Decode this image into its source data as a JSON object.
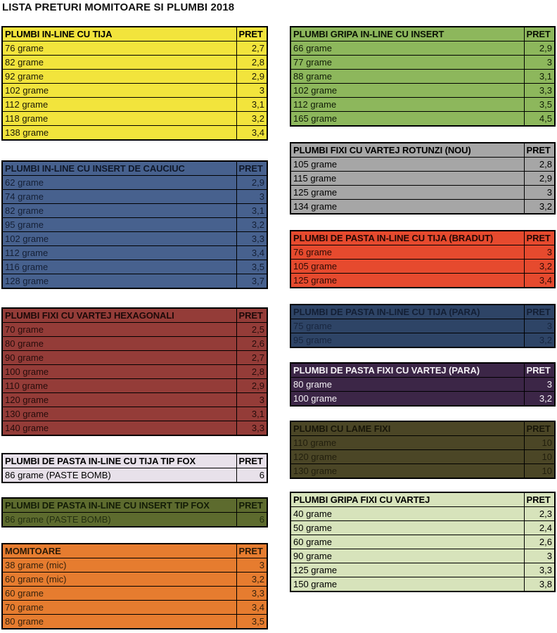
{
  "page_title": "LISTA PRETURI MOMITOARE SI PLUMBI 2018",
  "columns": {
    "left": [
      {
        "id": "plumbi-in-line-cu-tija",
        "title": "PLUMBI IN-LINE CU TIJA",
        "price_label": "PRET",
        "colors": {
          "bg": "#f2e43c",
          "text": "#1c1a06",
          "header_text": "#000000"
        },
        "rows": [
          {
            "item": "76 grame",
            "price": "2,7"
          },
          {
            "item": "82 grame",
            "price": "2,8"
          },
          {
            "item": "92 grame",
            "price": "2,9"
          },
          {
            "item": "102 grame",
            "price": "3"
          },
          {
            "item": "112 grame",
            "price": "3,1"
          },
          {
            "item": "118 grame",
            "price": "3,2"
          },
          {
            "item": "138 grame",
            "price": "3,4"
          }
        ]
      },
      {
        "id": "plumbi-in-line-cu-insert-de-cauciuc",
        "title": "PLUMBI IN-LINE CU INSERT DE CAUCIUC",
        "price_label": "PRET",
        "colors": {
          "bg": "#47618e",
          "text": "#141f35",
          "header_text": "#0f182a"
        },
        "rows": [
          {
            "item": "62 grame",
            "price": "2,9"
          },
          {
            "item": "74 grame",
            "price": "3"
          },
          {
            "item": "82 grame",
            "price": "3,1"
          },
          {
            "item": "95 grame",
            "price": "3,2"
          },
          {
            "item": "102 grame",
            "price": "3,3"
          },
          {
            "item": "112 grame",
            "price": "3,4"
          },
          {
            "item": "116 grame",
            "price": "3,5"
          },
          {
            "item": "128 grame",
            "price": "3,7"
          }
        ]
      },
      {
        "id": "plumbi-fixi-cu-vartej-hexagonali",
        "title": "PLUMBI FIXI CU VARTEJ HEXAGONALI",
        "price_label": "PRET",
        "colors": {
          "bg": "#943c38",
          "text": "#260c0b",
          "header_text": "#1d0908"
        },
        "rows": [
          {
            "item": "70 grame",
            "price": "2,5"
          },
          {
            "item": "80 grame",
            "price": "2,6"
          },
          {
            "item": "90 grame",
            "price": "2,7"
          },
          {
            "item": "100 grame",
            "price": "2,8"
          },
          {
            "item": "110 grame",
            "price": "2,9"
          },
          {
            "item": "120 grame",
            "price": "3"
          },
          {
            "item": "130 grame",
            "price": "3,1"
          },
          {
            "item": "140 grame",
            "price": "3,3"
          }
        ]
      },
      {
        "id": "plumbi-de-pasta-in-line-cu-tija-tip-fox",
        "title": "PLUMBI DE PASTA IN-LINE CU TIJA TIP FOX",
        "price_label": "PRET",
        "colors": {
          "bg": "#e8e1ea",
          "text": "#000000",
          "header_text": "#000000"
        },
        "rows": [
          {
            "item": "86 grame (PASTE BOMB)",
            "price": "6"
          }
        ]
      },
      {
        "id": "plumbi-de-pasta-in-line-cu-insert-tip-fox",
        "title": "PLUMBI DE PASTA IN-LINE CU INSERT TIP FOX",
        "price_label": "PRET",
        "colors": {
          "bg": "#5d6b2e",
          "text": "#232f10",
          "header_text": "#131c06"
        },
        "rows": [
          {
            "item": "86 grame (PASTE BOMB)",
            "price": "6"
          }
        ]
      },
      {
        "id": "momitoare",
        "title": "MOMITOARE",
        "price_label": "PRET",
        "colors": {
          "bg": "#e67c2f",
          "text": "#36220d",
          "header_text": "#2a1a08"
        },
        "rows": [
          {
            "item": "38 grame (mic)",
            "price": "3"
          },
          {
            "item": "60 grame (mic)",
            "price": "3,2"
          },
          {
            "item": "60 grame",
            "price": "3,3"
          },
          {
            "item": "70 grame",
            "price": "3,4"
          },
          {
            "item": "80 grame",
            "price": "3,5"
          }
        ]
      }
    ],
    "right": [
      {
        "id": "plumbi-gripa-in-line-cu-insert",
        "title": "PLUMBI GRIPA IN-LINE CU INSERT",
        "price_label": "PRET",
        "colors": {
          "bg": "#8db75c",
          "text": "#101c06",
          "header_text": "#0a1203"
        },
        "rows": [
          {
            "item": "66 grame",
            "price": "2,9"
          },
          {
            "item": "77 grame",
            "price": "3"
          },
          {
            "item": "88 grame",
            "price": "3,1"
          },
          {
            "item": "102 grame",
            "price": "3,3"
          },
          {
            "item": "112 grame",
            "price": "3,5"
          },
          {
            "item": "165 grame",
            "price": "4,5"
          }
        ]
      },
      {
        "id": "plumbi-fixi-cu-vartej-rotunzi-nou",
        "title": "PLUMBI FIXI CU VARTEJ ROTUNZI (NOU)",
        "price_label": "PRET",
        "colors": {
          "bg": "#a6a6a6",
          "text": "#000000",
          "header_text": "#000000"
        },
        "rows": [
          {
            "item": "105 grame",
            "price": "2,8"
          },
          {
            "item": "115 grame",
            "price": "2,9"
          },
          {
            "item": "125 grame",
            "price": "3"
          },
          {
            "item": "134 grame",
            "price": "3,2"
          }
        ]
      },
      {
        "id": "plumbi-de-pasta-in-line-cu-tija-bradut",
        "title": "PLUMBI DE PASTA IN-LINE CU TIJA (BRADUT)",
        "price_label": "PRET",
        "colors": {
          "bg": "#e64a2e",
          "text": "#2d0b05",
          "header_text": "#230804"
        },
        "rows": [
          {
            "item": "76 grame",
            "price": "3"
          },
          {
            "item": "105 grame",
            "price": "3,2"
          },
          {
            "item": "125 grame",
            "price": "3,4"
          }
        ]
      },
      {
        "id": "plumbi-de-pasta-in-line-cu-tija-para",
        "title": "PLUMBI DE PASTA IN-LINE CU TIJA (PARA)",
        "price_label": "PRET",
        "colors": {
          "bg": "#2e4466",
          "text": "#18263f",
          "header_text": "#131f35"
        },
        "rows": [
          {
            "item": "75 grame",
            "price": "3"
          },
          {
            "item": "95 grame",
            "price": "3,2"
          }
        ]
      },
      {
        "id": "plumbi-de-pasta-fixi-cu-vartej-para",
        "title": "PLUMBI DE PASTA FIXI CU VARTEJ (PARA)",
        "price_label": "PRET",
        "colors": {
          "bg": "#3c2647",
          "text": "#f4f1f5",
          "header_text": "#f4f1f5"
        },
        "rows": [
          {
            "item": "80 grame",
            "price": "3"
          },
          {
            "item": "100 grame",
            "price": "3,2"
          }
        ]
      },
      {
        "id": "plumbi-cu-lame-fixi",
        "title": "PLUMBI CU LAME FIXI",
        "price_label": "PRET",
        "colors": {
          "bg": "#4b4626",
          "text": "#211e0d",
          "header_text": "#181608"
        },
        "rows": [
          {
            "item": "110 grame",
            "price": "10"
          },
          {
            "item": "120 grame",
            "price": "10"
          },
          {
            "item": "130 grame",
            "price": "10"
          }
        ]
      },
      {
        "id": "plumbi-gripa-fixi-cu-vartej",
        "title": "PLUMBI GRIPA FIXI CU VARTEJ",
        "price_label": "PRET",
        "colors": {
          "bg": "#d7e3bb",
          "text": "#000000",
          "header_text": "#000000"
        },
        "rows": [
          {
            "item": "40 grame",
            "price": "2,3"
          },
          {
            "item": "50 grame",
            "price": "2,4"
          },
          {
            "item": "60 grame",
            "price": "2,6"
          },
          {
            "item": "90 grame",
            "price": "3"
          },
          {
            "item": "125 grame",
            "price": "3,3"
          },
          {
            "item": "150 grame",
            "price": "3,8"
          }
        ]
      }
    ]
  }
}
